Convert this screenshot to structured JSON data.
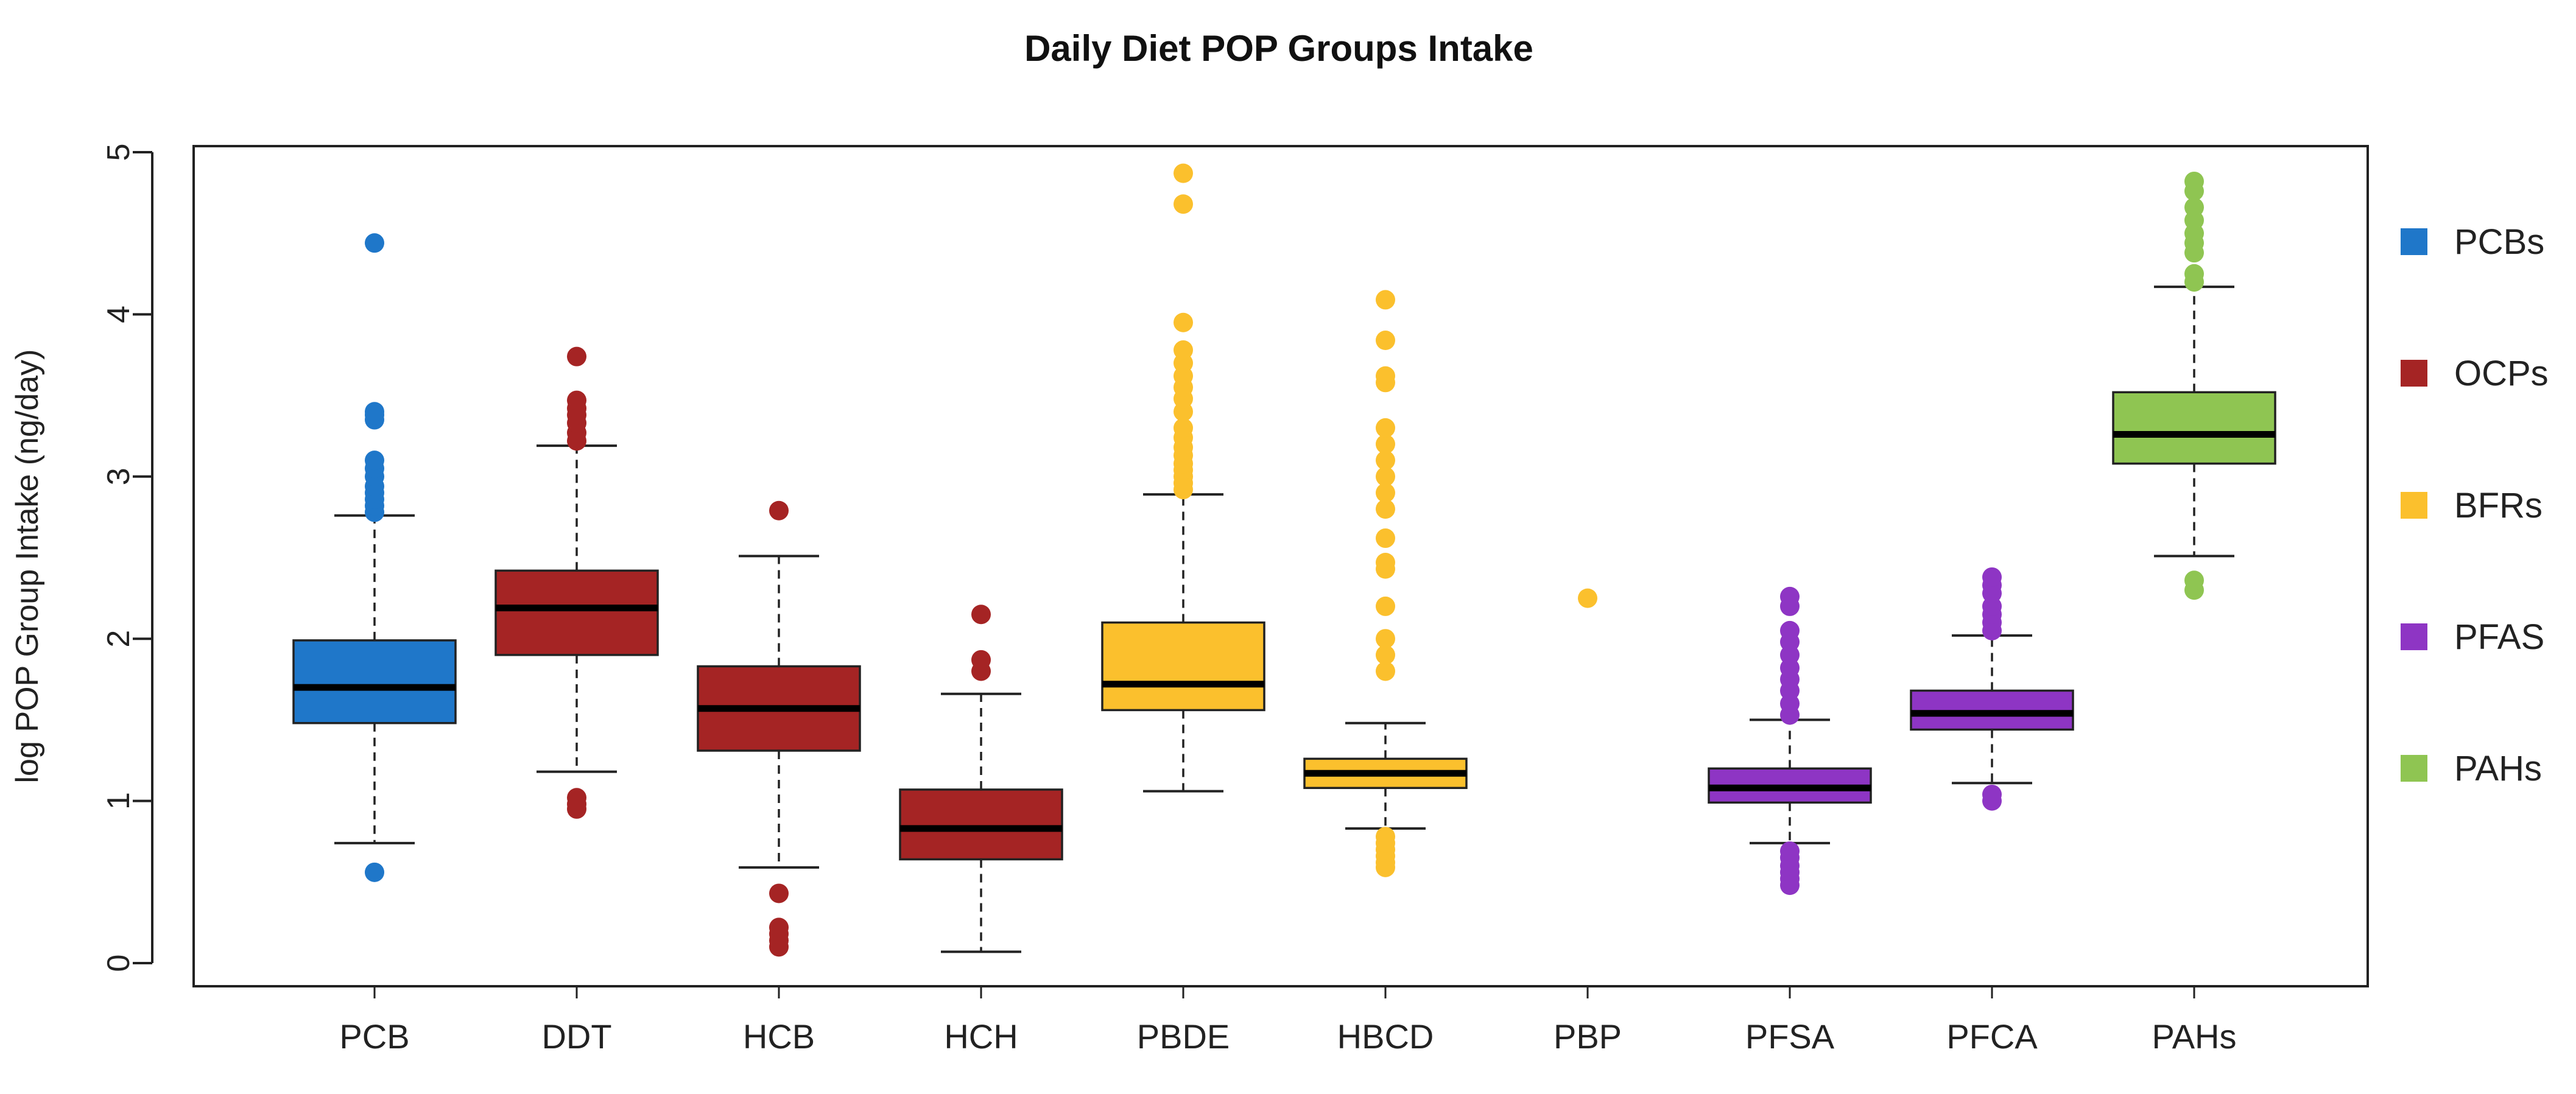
{
  "chart_data": {
    "type": "boxplot",
    "title": "Daily Diet POP Groups Intake",
    "xlabel": "",
    "ylabel": "log POP Group Intake (ng/day)",
    "ylim": [
      -0.15,
      5.1
    ],
    "yticks": [
      0,
      1,
      2,
      3,
      4,
      5
    ],
    "ytick_labels": [
      "0",
      "1",
      "2",
      "3",
      "4",
      "5"
    ],
    "categories": [
      "PCB",
      "DDT",
      "HCB",
      "HCH",
      "PBDE",
      "HBCD",
      "PBP",
      "PFSA",
      "PFCA",
      "PAHs"
    ],
    "boxes": [
      {
        "name": "PCB",
        "group": "PCBs",
        "whisker_low": 0.74,
        "q1": 1.48,
        "median": 1.7,
        "q3": 1.99,
        "whisker_high": 2.76,
        "outliers": [
          0.56,
          2.78,
          2.82,
          2.86,
          2.9,
          2.94,
          3.0,
          3.05,
          3.1,
          3.35,
          3.38,
          3.4,
          4.44
        ]
      },
      {
        "name": "DDT",
        "group": "OCPs",
        "whisker_low": 1.18,
        "q1": 1.9,
        "median": 2.19,
        "q3": 2.42,
        "whisker_high": 3.19,
        "outliers": [
          0.95,
          0.98,
          1.02,
          3.22,
          3.27,
          3.33,
          3.38,
          3.42,
          3.47,
          3.74
        ]
      },
      {
        "name": "HCB",
        "group": "OCPs",
        "whisker_low": 0.59,
        "q1": 1.31,
        "median": 1.57,
        "q3": 1.83,
        "whisker_high": 2.51,
        "outliers": [
          0.1,
          0.14,
          0.18,
          0.22,
          0.43,
          2.79
        ]
      },
      {
        "name": "HCH",
        "group": "OCPs",
        "whisker_low": 0.07,
        "q1": 0.64,
        "median": 0.83,
        "q3": 1.07,
        "whisker_high": 1.66,
        "outliers": [
          1.8,
          1.87,
          2.15
        ]
      },
      {
        "name": "PBDE",
        "group": "BFRs",
        "whisker_low": 1.06,
        "q1": 1.56,
        "median": 1.72,
        "q3": 2.1,
        "whisker_high": 2.89,
        "outliers": [
          2.92,
          2.96,
          3.0,
          3.04,
          3.08,
          3.13,
          3.18,
          3.24,
          3.3,
          3.4,
          3.48,
          3.55,
          3.62,
          3.7,
          3.78,
          3.95,
          4.68,
          4.87
        ]
      },
      {
        "name": "HBCD",
        "group": "BFRs",
        "whisker_low": 0.83,
        "q1": 1.08,
        "median": 1.17,
        "q3": 1.26,
        "whisker_high": 1.48,
        "outliers": [
          0.59,
          0.62,
          0.66,
          0.7,
          0.74,
          0.78,
          1.8,
          1.9,
          2.0,
          2.2,
          2.43,
          2.47,
          2.62,
          2.8,
          2.9,
          3.0,
          3.1,
          3.2,
          3.3,
          3.58,
          3.62,
          3.84,
          4.09
        ]
      },
      {
        "name": "PBP",
        "group": "BFRs",
        "whisker_low": null,
        "q1": null,
        "median": null,
        "q3": null,
        "whisker_high": null,
        "outliers": [
          2.25
        ]
      },
      {
        "name": "PFSA",
        "group": "PFAS",
        "whisker_low": 0.74,
        "q1": 0.99,
        "median": 1.08,
        "q3": 1.2,
        "whisker_high": 1.5,
        "outliers": [
          0.48,
          0.52,
          0.56,
          0.6,
          0.65,
          0.69,
          1.53,
          1.6,
          1.68,
          1.75,
          1.82,
          1.9,
          1.98,
          2.05,
          2.2,
          2.26
        ]
      },
      {
        "name": "PFCA",
        "group": "PFAS",
        "whisker_low": 1.11,
        "q1": 1.44,
        "median": 1.54,
        "q3": 1.68,
        "whisker_high": 2.02,
        "outliers": [
          1.0,
          1.04,
          2.05,
          2.1,
          2.15,
          2.2,
          2.28,
          2.33,
          2.38
        ]
      },
      {
        "name": "PAHs",
        "group": "PAHs",
        "whisker_low": 2.51,
        "q1": 3.08,
        "median": 3.26,
        "q3": 3.52,
        "whisker_high": 4.17,
        "outliers": [
          2.3,
          2.36,
          4.2,
          4.25,
          4.38,
          4.44,
          4.5,
          4.58,
          4.66,
          4.76,
          4.82
        ]
      }
    ],
    "legend": [
      {
        "label": "PCBs",
        "color": "#1f77c9"
      },
      {
        "label": "OCPs",
        "color": "#a52424"
      },
      {
        "label": "BFRs",
        "color": "#fbc02d"
      },
      {
        "label": "PFAS",
        "color": "#8e35c4"
      },
      {
        "label": "PAHs",
        "color": "#8fc552"
      }
    ],
    "legend_position": "right"
  }
}
